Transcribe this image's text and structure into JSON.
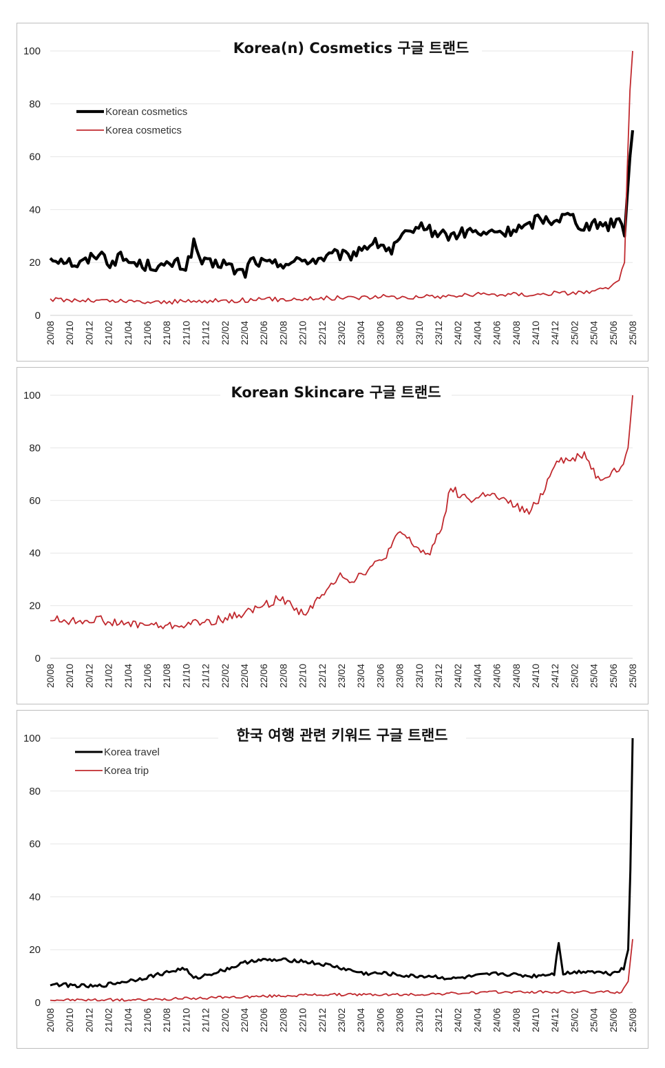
{
  "chart_data": [
    {
      "type": "line",
      "title": "Korea(n) Cosmetics 구글 트랜드",
      "ylim": [
        0,
        100
      ],
      "yticks": [
        0,
        20,
        40,
        60,
        80,
        100
      ],
      "x_tick_labels": [
        "20/08",
        "20/10",
        "20/12",
        "21/02",
        "21/04",
        "21/06",
        "21/08",
        "21/10",
        "21/12",
        "22/02",
        "22/04",
        "22/06",
        "22/08",
        "22/10",
        "22/12",
        "23/02",
        "23/04",
        "23/06",
        "23/08",
        "23/10",
        "23/12",
        "24/02",
        "24/04",
        "24/06",
        "24/08",
        "24/10",
        "24/12",
        "25/02",
        "25/04",
        "25/06",
        "25/08"
      ],
      "legend_position": "top-left",
      "series": [
        {
          "name": "Korean cosmetics",
          "color": "#000000",
          "width": "thick",
          "keyframes": [
            [
              0,
              22
            ],
            [
              6,
              21
            ],
            [
              10,
              19
            ],
            [
              14,
              21
            ],
            [
              18,
              24
            ],
            [
              22,
              20
            ],
            [
              26,
              22
            ],
            [
              30,
              20
            ],
            [
              34,
              19
            ],
            [
              38,
              19
            ],
            [
              42,
              18
            ],
            [
              46,
              20
            ],
            [
              50,
              18
            ],
            [
              53,
              27
            ],
            [
              56,
              20
            ],
            [
              60,
              19
            ],
            [
              64,
              20
            ],
            [
              68,
              17
            ],
            [
              72,
              16
            ],
            [
              74,
              21
            ],
            [
              78,
              20
            ],
            [
              82,
              19
            ],
            [
              86,
              20
            ],
            [
              90,
              20
            ],
            [
              94,
              21
            ],
            [
              98,
              21
            ],
            [
              102,
              22
            ],
            [
              106,
              23
            ],
            [
              110,
              22
            ],
            [
              114,
              25
            ],
            [
              118,
              27
            ],
            [
              122,
              27
            ],
            [
              126,
              24
            ],
            [
              130,
              30
            ],
            [
              134,
              30
            ],
            [
              136,
              35
            ],
            [
              140,
              32
            ],
            [
              144,
              31
            ],
            [
              148,
              30
            ],
            [
              152,
              31
            ],
            [
              156,
              32
            ],
            [
              160,
              30
            ],
            [
              164,
              32
            ],
            [
              168,
              31
            ],
            [
              172,
              33
            ],
            [
              176,
              33
            ],
            [
              180,
              37
            ],
            [
              184,
              36
            ],
            [
              188,
              37
            ],
            [
              192,
              38
            ],
            [
              196,
              34
            ],
            [
              200,
              34
            ],
            [
              204,
              35
            ],
            [
              206,
              34
            ],
            [
              210,
              37
            ],
            [
              212,
              30
            ],
            [
              214,
              60
            ],
            [
              215,
              70
            ]
          ],
          "noise": 2.2,
          "samples": 216
        },
        {
          "name": "Korea cosmetics",
          "color": "#c0282d",
          "width": "thin",
          "keyframes": [
            [
              0,
              6
            ],
            [
              20,
              5.5
            ],
            [
              40,
              5
            ],
            [
              60,
              5.5
            ],
            [
              80,
              6
            ],
            [
              100,
              6.5
            ],
            [
              120,
              7
            ],
            [
              140,
              7
            ],
            [
              160,
              8
            ],
            [
              180,
              8
            ],
            [
              200,
              9
            ],
            [
              206,
              10
            ],
            [
              210,
              13
            ],
            [
              212,
              20
            ],
            [
              213,
              55
            ],
            [
              214,
              85
            ],
            [
              215,
              100
            ]
          ],
          "noise": 0.9,
          "samples": 216
        }
      ]
    },
    {
      "type": "line",
      "title": "Korean Skincare 구글 트랜드",
      "ylim": [
        0,
        100
      ],
      "yticks": [
        0,
        20,
        40,
        60,
        80,
        100
      ],
      "x_tick_labels": [
        "20/08",
        "20/10",
        "20/12",
        "21/02",
        "21/04",
        "21/06",
        "21/08",
        "21/10",
        "21/12",
        "22/02",
        "22/04",
        "22/06",
        "22/08",
        "22/10",
        "22/12",
        "23/02",
        "23/04",
        "23/06",
        "23/08",
        "23/10",
        "23/12",
        "24/02",
        "24/04",
        "24/06",
        "24/08",
        "24/10",
        "24/12",
        "25/02",
        "25/04",
        "25/06",
        "25/08"
      ],
      "series": [
        {
          "name": "Korean Skincare",
          "color": "#c0282d",
          "width": "thin",
          "keyframes": [
            [
              0,
              15
            ],
            [
              10,
              14
            ],
            [
              20,
              15
            ],
            [
              30,
              13
            ],
            [
              40,
              13
            ],
            [
              50,
              12
            ],
            [
              60,
              13
            ],
            [
              70,
              14
            ],
            [
              80,
              16
            ],
            [
              90,
              19
            ],
            [
              100,
              23
            ],
            [
              110,
              17
            ],
            [
              120,
              25
            ],
            [
              126,
              33
            ],
            [
              130,
              29
            ],
            [
              135,
              32
            ],
            [
              140,
              35
            ],
            [
              144,
              37
            ],
            [
              148,
              42
            ],
            [
              152,
              48
            ],
            [
              158,
              43
            ],
            [
              164,
              39
            ],
            [
              170,
              50
            ],
            [
              174,
              65
            ],
            [
              178,
              62
            ],
            [
              184,
              60
            ],
            [
              190,
              63
            ],
            [
              196,
              60
            ],
            [
              202,
              58
            ],
            [
              208,
              55
            ],
            [
              214,
              63
            ],
            [
              220,
              76
            ],
            [
              226,
              75
            ],
            [
              232,
              78
            ],
            [
              238,
              68
            ],
            [
              244,
              71
            ],
            [
              248,
              72
            ],
            [
              251,
              80
            ],
            [
              253,
              100
            ]
          ],
          "noise": 1.6,
          "samples": 254
        }
      ]
    },
    {
      "type": "line",
      "title": "한국 여행 관련 키워드 구글 트랜드",
      "ylim": [
        0,
        100
      ],
      "yticks": [
        0,
        20,
        40,
        60,
        80,
        100
      ],
      "x_tick_labels": [
        "20/08",
        "20/10",
        "20/12",
        "21/02",
        "21/04",
        "21/06",
        "21/08",
        "21/10",
        "21/12",
        "22/02",
        "22/04",
        "22/06",
        "22/08",
        "22/10",
        "22/12",
        "23/02",
        "23/04",
        "23/06",
        "23/08",
        "23/10",
        "23/12",
        "24/02",
        "24/04",
        "24/06",
        "24/08",
        "24/10",
        "24/12",
        "25/02",
        "25/04",
        "25/06",
        "25/08"
      ],
      "legend_position": "top-left",
      "series": [
        {
          "name": "Korea travel",
          "color": "#000000",
          "width": "medium",
          "keyframes": [
            [
              0,
              7
            ],
            [
              20,
              6
            ],
            [
              40,
              9
            ],
            [
              60,
              13
            ],
            [
              64,
              9
            ],
            [
              80,
              13
            ],
            [
              90,
              16
            ],
            [
              110,
              16
            ],
            [
              125,
              14
            ],
            [
              140,
              11
            ],
            [
              150,
              11
            ],
            [
              160,
              10
            ],
            [
              170,
              10
            ],
            [
              180,
              9
            ],
            [
              190,
              10
            ],
            [
              200,
              11
            ],
            [
              215,
              10
            ],
            [
              225,
              11
            ],
            [
              227,
              23
            ],
            [
              229,
              11
            ],
            [
              240,
              12
            ],
            [
              250,
              11
            ],
            [
              256,
              13
            ],
            [
              258,
              20
            ],
            [
              259,
              50
            ],
            [
              260,
              100
            ]
          ],
          "noise": 0.7,
          "samples": 261
        },
        {
          "name": "Korea trip",
          "color": "#c0282d",
          "width": "thin",
          "keyframes": [
            [
              0,
              1
            ],
            [
              40,
              1
            ],
            [
              80,
              2
            ],
            [
              120,
              3
            ],
            [
              160,
              3
            ],
            [
              200,
              4
            ],
            [
              240,
              4
            ],
            [
              255,
              4
            ],
            [
              258,
              8
            ],
            [
              260,
              24
            ]
          ],
          "noise": 0.5,
          "samples": 261
        }
      ]
    }
  ]
}
